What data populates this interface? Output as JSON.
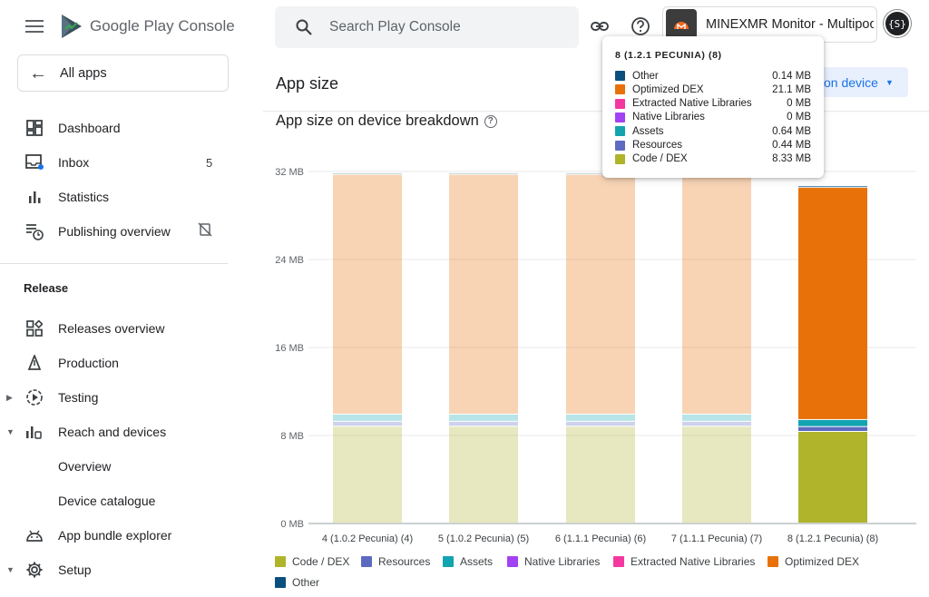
{
  "brand": {
    "name": "Google Play Console"
  },
  "sidebar": {
    "all_apps": "All apps",
    "items": [
      {
        "label": "Dashboard"
      },
      {
        "label": "Inbox",
        "badge": "5"
      },
      {
        "label": "Statistics"
      },
      {
        "label": "Publishing overview"
      }
    ],
    "release_title": "Release",
    "release_items": [
      {
        "label": "Releases overview"
      },
      {
        "label": "Production"
      },
      {
        "label": "Testing"
      },
      {
        "label": "Reach and devices"
      },
      {
        "label": "Overview"
      },
      {
        "label": "Device catalogue"
      },
      {
        "label": "App bundle explorer"
      },
      {
        "label": "Setup"
      }
    ]
  },
  "header": {
    "search_placeholder": "Search Play Console",
    "app_name": "MINEXMR Monitor - Multipool",
    "avatar_text": "{S}"
  },
  "page": {
    "title": "App size",
    "metric_label": "on device",
    "chart_title": "App size on device breakdown"
  },
  "tooltip": {
    "title": "8 (1.2.1 PECUNIA) (8)",
    "rows": [
      {
        "label": "Other",
        "value": "0.14 MB",
        "color": "#0b4f7f"
      },
      {
        "label": "Optimized DEX",
        "value": "21.1 MB",
        "color": "#e8710a"
      },
      {
        "label": "Extracted Native Libraries",
        "value": "0 MB",
        "color": "#f538a0"
      },
      {
        "label": "Native Libraries",
        "value": "0 MB",
        "color": "#a142f4"
      },
      {
        "label": "Assets",
        "value": "0.64 MB",
        "color": "#12a4af"
      },
      {
        "label": "Resources",
        "value": "0.44 MB",
        "color": "#5c6bc0"
      },
      {
        "label": "Code / DEX",
        "value": "8.33 MB",
        "color": "#afb42b"
      }
    ]
  },
  "colors": {
    "code_dex": "#afb42b",
    "resources": "#5c6bc0",
    "assets": "#12a4af",
    "native_libraries": "#a142f4",
    "extracted_native_libraries": "#f538a0",
    "optimized_dex": "#e8710a",
    "other": "#0b4f7f"
  },
  "chart_data": {
    "type": "bar",
    "stacked": true,
    "title": "App size on device breakdown",
    "ylim": [
      0,
      32
    ],
    "yticks": [
      "0 MB",
      "8 MB",
      "16 MB",
      "24 MB",
      "32 MB"
    ],
    "ytick_values": [
      0,
      8,
      16,
      24,
      32
    ],
    "categories": [
      "4 (1.0.2 Pecunia) (4)",
      "5 (1.0.2 Pecunia) (5)",
      "6 (1.1.1 Pecunia) (6)",
      "7 (1.1.1 Pecunia) (7)",
      "8 (1.2.1 Pecunia) (8)"
    ],
    "highlighted_index": 4,
    "series": [
      {
        "name": "Code / DEX",
        "color": "#afb42b",
        "values": [
          8.8,
          8.8,
          8.8,
          8.8,
          8.33
        ]
      },
      {
        "name": "Resources",
        "color": "#5c6bc0",
        "values": [
          0.45,
          0.45,
          0.45,
          0.45,
          0.44
        ]
      },
      {
        "name": "Assets",
        "color": "#12a4af",
        "values": [
          0.65,
          0.65,
          0.65,
          0.65,
          0.64
        ]
      },
      {
        "name": "Native Libraries",
        "color": "#a142f4",
        "values": [
          0,
          0,
          0,
          0,
          0
        ]
      },
      {
        "name": "Extracted Native Libraries",
        "color": "#f538a0",
        "values": [
          0,
          0,
          0,
          0,
          0
        ]
      },
      {
        "name": "Optimized DEX",
        "color": "#e8710a",
        "values": [
          21.8,
          21.8,
          21.8,
          21.8,
          21.1
        ]
      },
      {
        "name": "Other",
        "color": "#0b4f7f",
        "values": [
          0.14,
          0.14,
          0.14,
          0.14,
          0.14
        ]
      }
    ],
    "legend": [
      "Code / DEX",
      "Resources",
      "Assets",
      "Native Libraries",
      "Extracted Native Libraries",
      "Optimized DEX",
      "Other"
    ]
  }
}
